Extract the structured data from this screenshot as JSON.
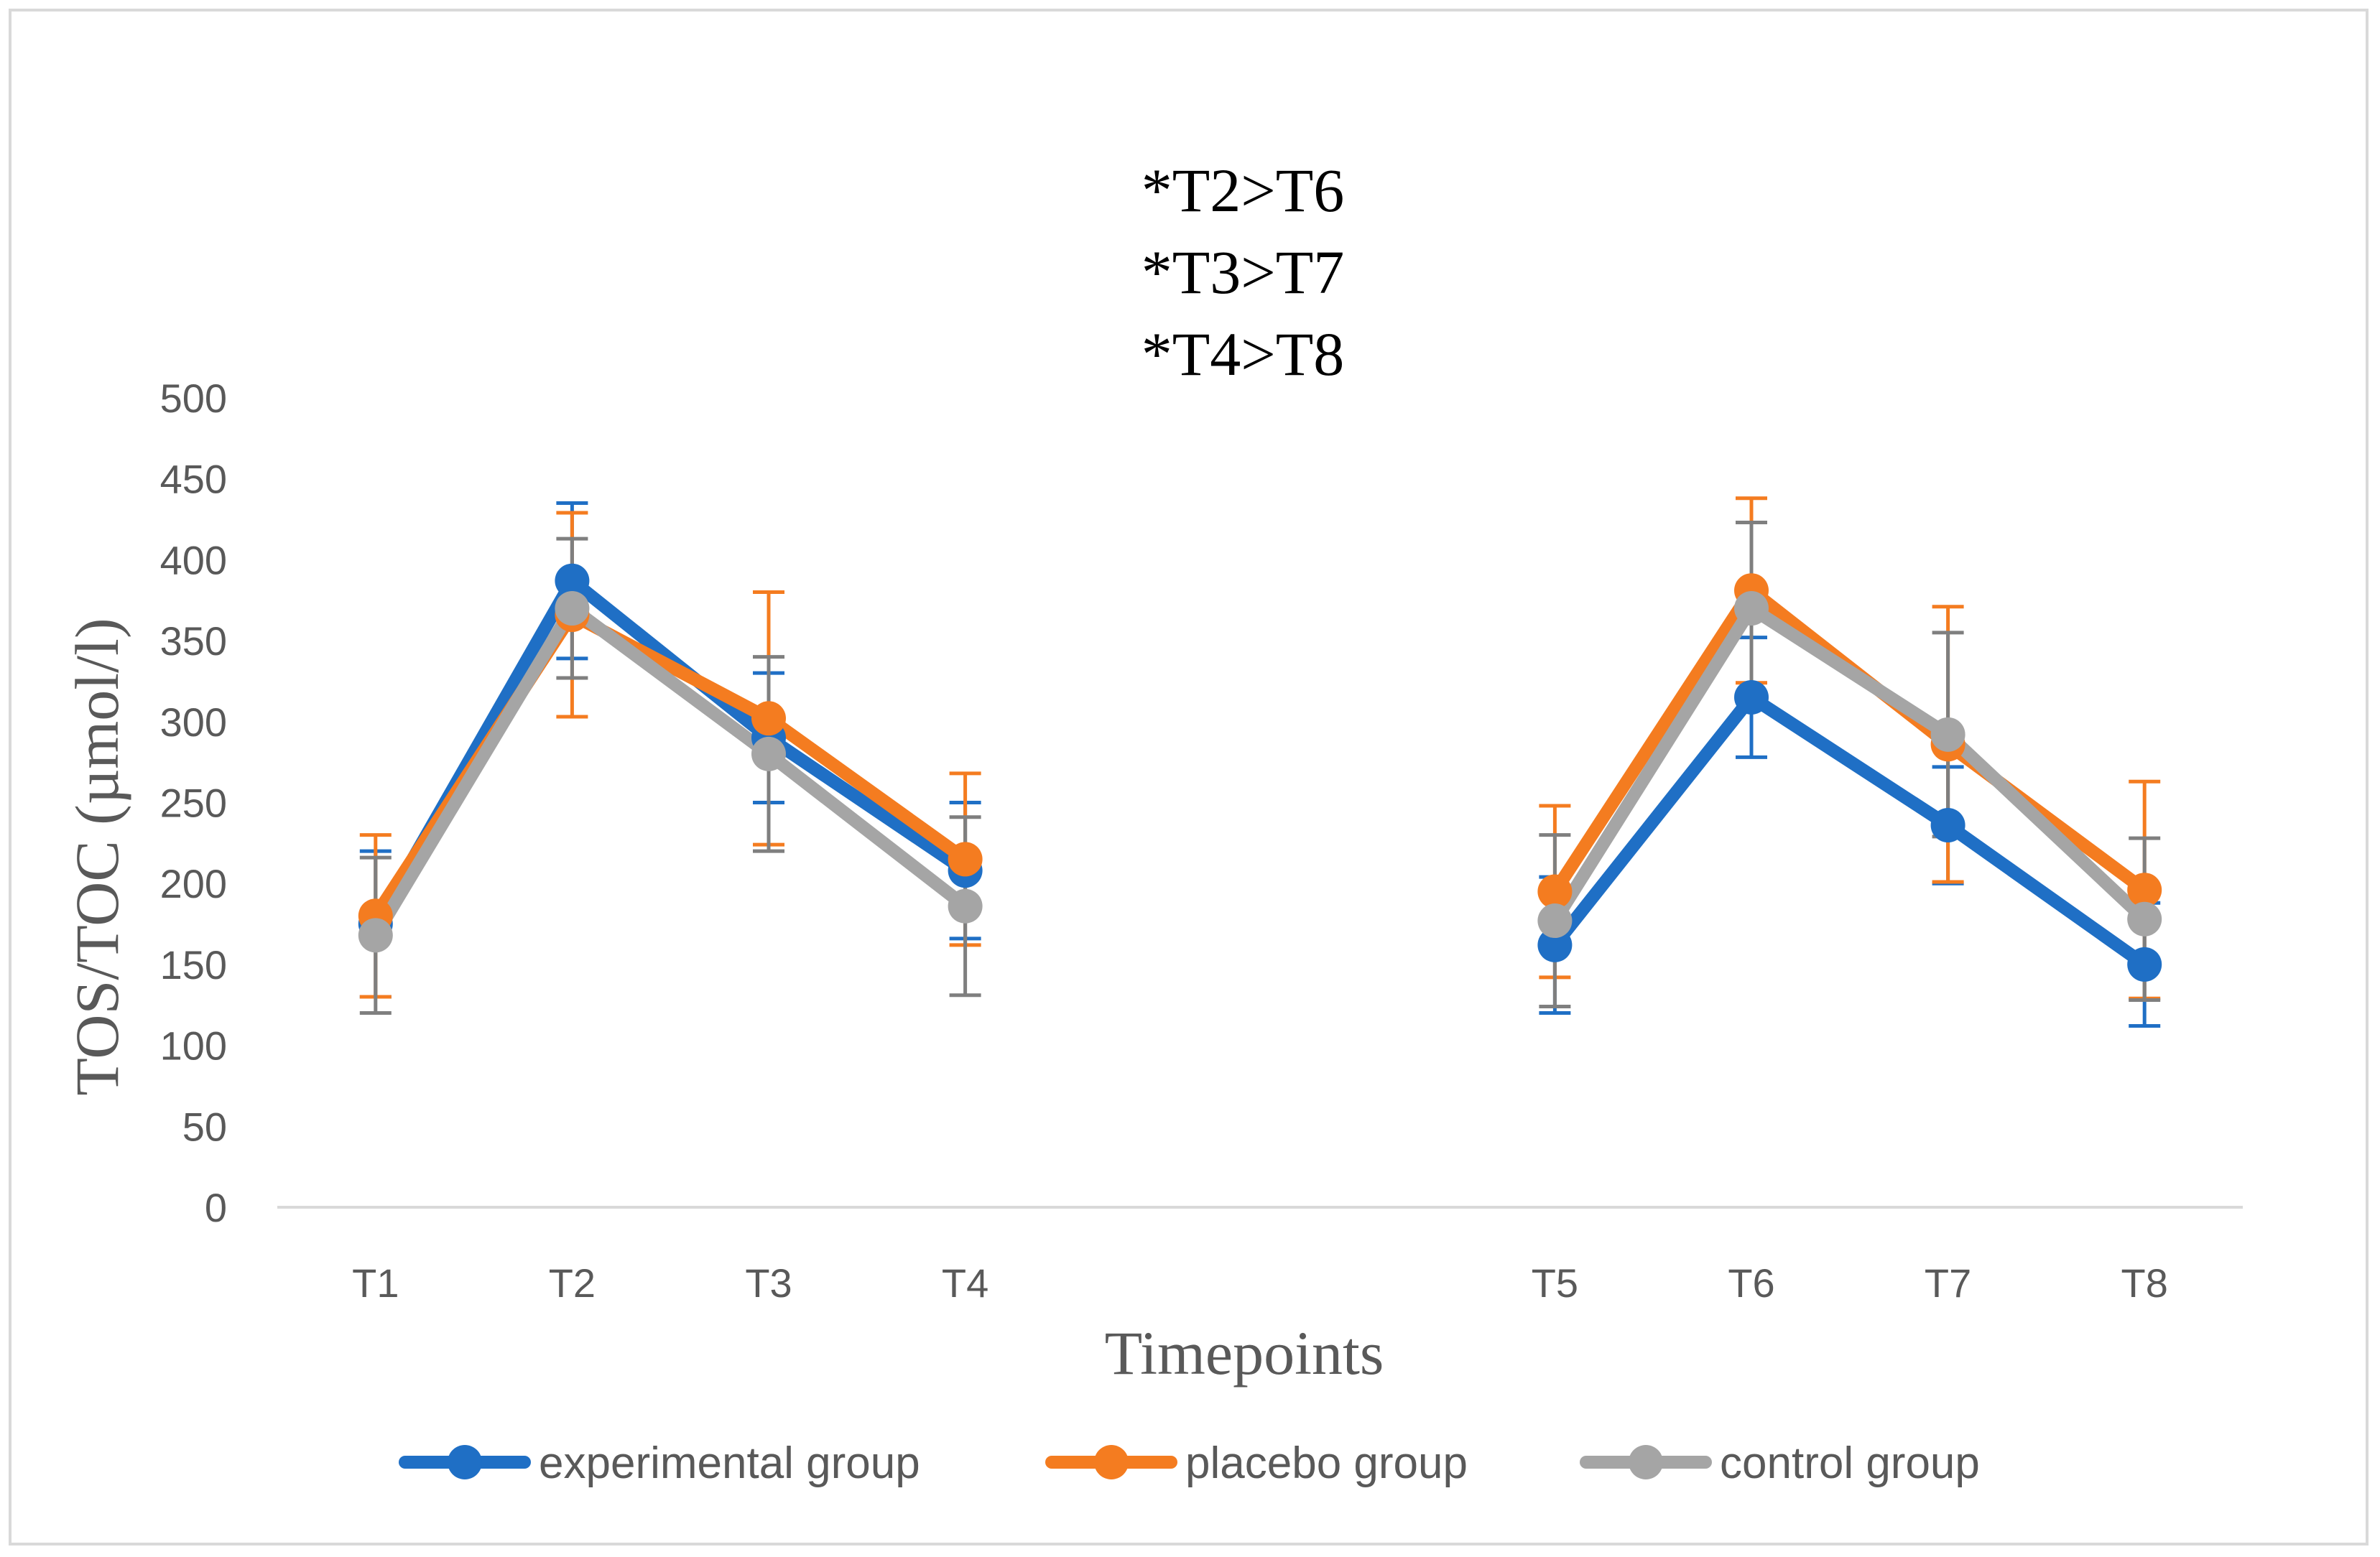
{
  "chart_data": {
    "type": "line",
    "title": "",
    "annotations": [
      "*T2>T6",
      "*T3>T7",
      "*T4>T8"
    ],
    "xlabel": "Timepoints",
    "ylabel": "TOS/TOC (µmol/l)",
    "ylim": [
      0,
      500
    ],
    "yticks": [
      0,
      50,
      100,
      150,
      200,
      250,
      300,
      350,
      400,
      450,
      500
    ],
    "categories": [
      "T1",
      "T2",
      "T3",
      "T4",
      "",
      "",
      "T5",
      "T6",
      "T7",
      "T8"
    ],
    "legend_position": "bottom",
    "grid": false,
    "series": [
      {
        "name": "experimental group",
        "color": "#1f6fc5",
        "values": [
          175,
          387,
          290,
          208,
          null,
          null,
          162,
          315,
          236,
          150
        ],
        "error": [
          45,
          48,
          40,
          42,
          null,
          null,
          42,
          37,
          36,
          38
        ]
      },
      {
        "name": "placebo group",
        "color": "#f47c20",
        "values": [
          180,
          366,
          302,
          215,
          null,
          null,
          195,
          381,
          286,
          196
        ],
        "error": [
          50,
          63,
          78,
          53,
          null,
          null,
          53,
          57,
          85,
          67
        ]
      },
      {
        "name": "control group",
        "color": "#a5a5a5",
        "errorColor": "#7f7f7f",
        "values": [
          168,
          370,
          280,
          186,
          null,
          null,
          177,
          370,
          292,
          178
        ],
        "error": [
          48,
          43,
          60,
          55,
          null,
          null,
          53,
          53,
          63,
          50
        ]
      }
    ]
  }
}
